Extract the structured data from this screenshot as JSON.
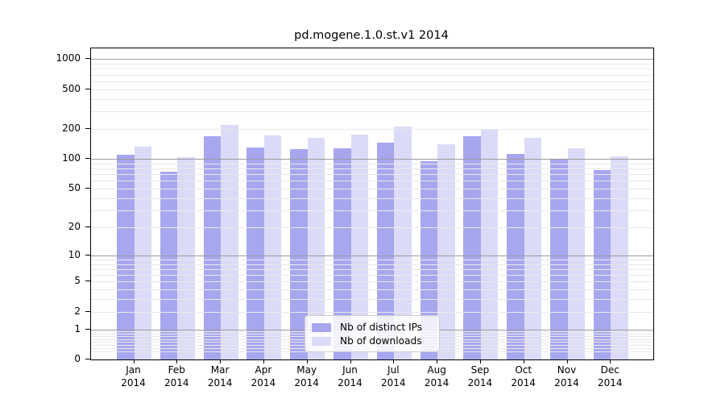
{
  "figure": {
    "title": "pd.mogene.1.0.st.v1 2014"
  },
  "chart_data": {
    "type": "bar",
    "title": "pd.mogene.1.0.st.v1 2014",
    "scale": "log10(1+x)",
    "grid": true,
    "legend_position": "lower center",
    "categories": [
      "Jan",
      "Feb",
      "Mar",
      "Apr",
      "May",
      "Jun",
      "Jul",
      "Aug",
      "Sep",
      "Oct",
      "Nov",
      "Dec"
    ],
    "year_label": "2014",
    "series": [
      {
        "key": "distinct-ips",
        "name": "Nb of distinct IPs",
        "color": "#a7a7ef",
        "values": [
          111,
          74,
          170,
          131,
          125,
          128,
          146,
          95,
          170,
          112,
          100,
          77
        ]
      },
      {
        "key": "downloads",
        "name": "Nb of downloads",
        "color": "#dbdbf8",
        "values": [
          133,
          104,
          220,
          172,
          163,
          176,
          210,
          139,
          200,
          164,
          128,
          105
        ]
      }
    ],
    "y_ticks": [
      0,
      1,
      2,
      5,
      10,
      20,
      50,
      100,
      200,
      500,
      1000
    ],
    "ylim": [
      0,
      1281
    ]
  },
  "legend": {
    "items": [
      {
        "label": "Nb of distinct IPs",
        "color": "#a7a7ef"
      },
      {
        "label": "Nb of downloads",
        "color": "#dbdbf8"
      }
    ]
  },
  "colors": {
    "axis": "#000000",
    "grid_major": "#9b9b9b",
    "grid_minor": "#e9e9e9",
    "legend_border": "#cccccc",
    "text": "#000000"
  }
}
